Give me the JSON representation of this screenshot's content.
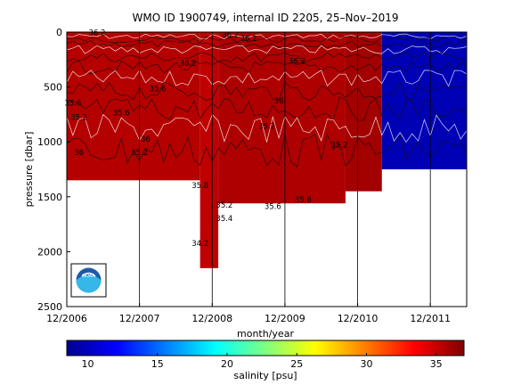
{
  "chart_data": [
    {
      "type": "heatmap",
      "title": "WMO ID 1900749, internal ID 2205, 25–Nov–2019",
      "xlabel": "month/year",
      "ylabel": "pressure [dbar]",
      "x_ticks": [
        "12/2006",
        "12/2007",
        "12/2008",
        "12/2009",
        "12/2010",
        "12/2011"
      ],
      "xlim": [
        "2006-12",
        "2012-06"
      ],
      "ylim": [
        2500,
        0
      ],
      "y_ticks": [
        0,
        500,
        1000,
        1500,
        2000,
        2500
      ],
      "y_reversed": true,
      "grid": "vertical lines at x ticks",
      "regions": [
        {
          "x_start": "2006-12",
          "x_end": "2008-10",
          "max_pressure": 1350,
          "salinity": 35.5
        },
        {
          "x_start": "2008-10",
          "x_end": "2009-01",
          "max_pressure": 2150,
          "salinity": 35.2
        },
        {
          "x_start": "2009-01",
          "x_end": "2010-10",
          "max_pressure": 1560,
          "salinity": 35.7
        },
        {
          "x_start": "2010-10",
          "x_end": "2011-04",
          "max_pressure": 1450,
          "salinity": 36.0
        },
        {
          "x_start": "2011-04",
          "x_end": "2012-06",
          "max_pressure": 1250,
          "salinity": 10
        }
      ],
      "contour_labels": [
        {
          "text": "36.2",
          "x": "2007-05",
          "p": 30
        },
        {
          "text": "36.2",
          "x": "2009-03",
          "p": 50
        },
        {
          "text": "36.2",
          "x": "2009-06",
          "p": 80
        },
        {
          "text": "36.2",
          "x": "2008-08",
          "p": 310
        },
        {
          "text": "36.2",
          "x": "2010-02",
          "p": 290
        },
        {
          "text": "35.2",
          "x": "2007-02",
          "p": 800
        },
        {
          "text": "35.2",
          "x": "2009-09",
          "p": 880
        },
        {
          "text": "35.2",
          "x": "2007-12",
          "p": 1120
        },
        {
          "text": "35.2",
          "x": "2010-09",
          "p": 1050
        },
        {
          "text": "35.6",
          "x": "2007-01",
          "p": 670
        },
        {
          "text": "35.6",
          "x": "2007-09",
          "p": 760
        },
        {
          "text": "35.6",
          "x": "2008-03",
          "p": 540
        },
        {
          "text": "35.6",
          "x": "2009-10",
          "p": 1610
        },
        {
          "text": "35.6",
          "x": "2010-03",
          "p": 1550
        },
        {
          "text": "35.8",
          "x": "2008-10",
          "p": 1420
        },
        {
          "text": "36",
          "x": "2007-02",
          "p": 1120
        },
        {
          "text": "36",
          "x": "2008-01",
          "p": 1000
        },
        {
          "text": "36",
          "x": "2009-11",
          "p": 650
        },
        {
          "text": "35.2",
          "x": "2009-02",
          "p": 1600
        },
        {
          "text": "35.4",
          "x": "2009-02",
          "p": 1720
        },
        {
          "text": "34.2",
          "x": "2008-10",
          "p": 1950
        }
      ],
      "logo": "NOAA"
    },
    {
      "type": "heatmap",
      "role": "colorbar",
      "xlabel": "salinity [psu]",
      "xlim": [
        8.5,
        37
      ],
      "ticks": [
        10,
        15,
        20,
        25,
        30,
        35
      ]
    }
  ]
}
